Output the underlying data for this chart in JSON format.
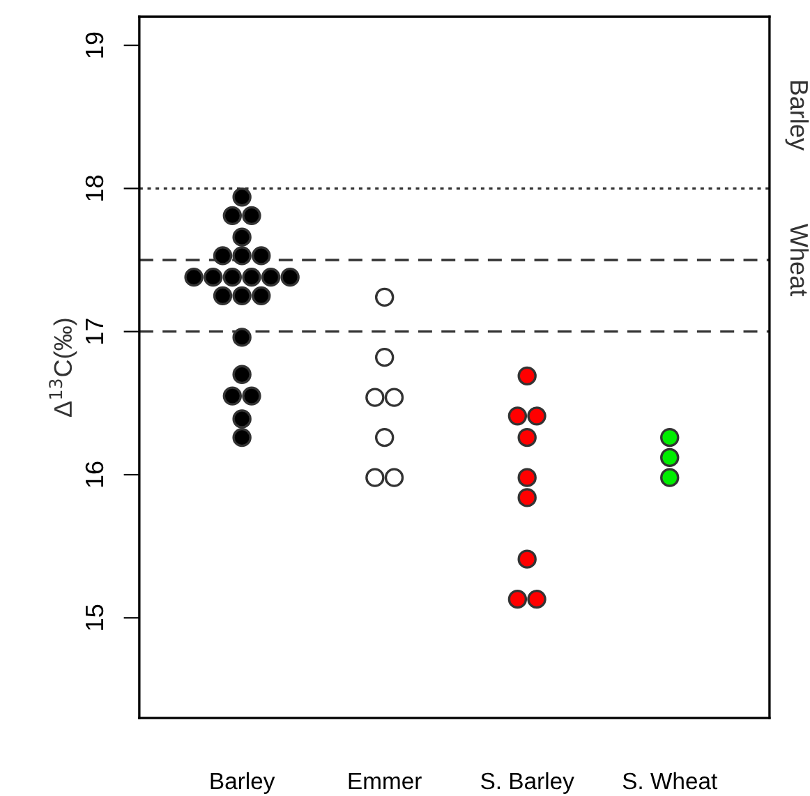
{
  "chart_data": {
    "type": "scatter",
    "ylabel": "Δ$^{13}$C(‰)",
    "categories": [
      "Barley",
      "Emmer",
      "S. Barley",
      "S. Wheat"
    ],
    "series": [
      {
        "color": "#000000",
        "x": [
          "Barley",
          "Barley",
          "Barley",
          "Barley",
          "Barley",
          "Barley",
          "Barley",
          "Barley",
          "Barley",
          "Barley",
          "Barley",
          "Barley",
          "Barley",
          "Barley",
          "Barley",
          "Barley",
          "Barley",
          "Barley",
          "Barley",
          "Barley",
          "Barley",
          "Barley"
        ],
        "values": [
          17.94,
          17.81,
          17.81,
          17.66,
          17.53,
          17.53,
          17.53,
          17.38,
          17.38,
          17.38,
          17.38,
          17.38,
          17.38,
          17.25,
          17.25,
          17.25,
          16.96,
          16.7,
          16.55,
          16.55,
          16.39,
          16.26
        ]
      },
      {
        "color": "#ffffff",
        "x": [
          "Emmer",
          "Emmer",
          "Emmer",
          "Emmer",
          "Emmer",
          "Emmer",
          "Emmer"
        ],
        "values": [
          17.24,
          16.82,
          16.54,
          16.54,
          16.26,
          15.98,
          15.98
        ]
      },
      {
        "color": "#ff0000",
        "x": [
          "S. Barley",
          "S. Barley",
          "S. Barley",
          "S. Barley",
          "S. Barley",
          "S. Barley",
          "S. Barley",
          "S. Barley",
          "S. Barley"
        ],
        "values": [
          16.69,
          16.41,
          16.41,
          16.26,
          15.98,
          15.84,
          15.41,
          15.13,
          15.13
        ]
      },
      {
        "color": "#00ee00",
        "x": [
          "S. Wheat",
          "S. Wheat",
          "S. Wheat"
        ],
        "values": [
          16.26,
          16.12,
          15.98
        ]
      }
    ],
    "marker": "circle",
    "ylim": [
      14.3,
      19.2
    ],
    "yticks": [
      15,
      16,
      17,
      18,
      19
    ],
    "ref_lines": [
      {
        "axis": "y",
        "value": 18,
        "label": null,
        "line_style": "dotted"
      },
      {
        "axis": "y",
        "value": 17.5,
        "label": "Wheat",
        "line_style": "dashed"
      },
      {
        "axis": "y",
        "value": 17,
        "label": null,
        "line_style": "dashed"
      }
    ],
    "annotations": [
      "Barley"
    ],
    "grid": false,
    "legend": false
  }
}
